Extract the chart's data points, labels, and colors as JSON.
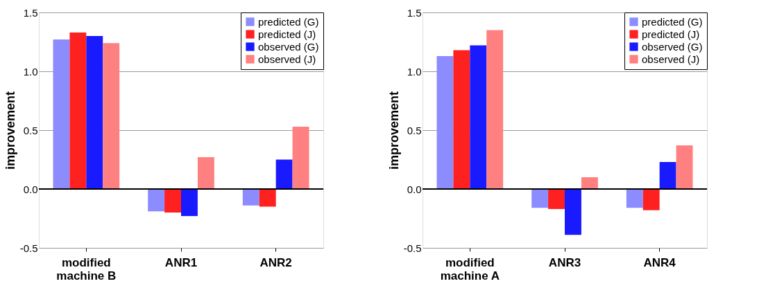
{
  "chart_data": [
    {
      "type": "bar",
      "ylabel": "improvement",
      "categories": [
        "modified\nmachine B",
        "ANR1",
        "ANR2"
      ],
      "ylim": [
        -0.5,
        1.5
      ],
      "yticks": [
        {
          "value": -0.5,
          "label": "-0.5"
        },
        {
          "value": 0,
          "label": "0.0"
        },
        {
          "value": 0.5,
          "label": "0.5"
        },
        {
          "value": 1,
          "label": "1.0"
        },
        {
          "value": 1.5,
          "label": "1.5"
        }
      ],
      "grid": "y",
      "legend": "top right",
      "ref_lines": [
        {
          "axis": "y",
          "value": 0,
          "color": "#000000"
        }
      ],
      "series": [
        {
          "name": "predicted (G)",
          "color": "#8c8cff",
          "values": [
            1.27,
            -0.19,
            -0.14
          ]
        },
        {
          "name": "predicted (J)",
          "color": "#ff2020",
          "values": [
            1.33,
            -0.2,
            -0.15
          ]
        },
        {
          "name": "observed (G)",
          "color": "#1a1aff",
          "values": [
            1.3,
            -0.23,
            0.25
          ]
        },
        {
          "name": "observed (J)",
          "color": "#ff8080",
          "values": [
            1.24,
            0.27,
            0.53
          ]
        }
      ]
    },
    {
      "type": "bar",
      "ylabel": "improvement",
      "categories": [
        "modified\nmachine A",
        "ANR3",
        "ANR4"
      ],
      "ylim": [
        -0.5,
        1.5
      ],
      "yticks": [
        {
          "value": -0.5,
          "label": "-0.5"
        },
        {
          "value": 0,
          "label": "0.0"
        },
        {
          "value": 0.5,
          "label": "0.5"
        },
        {
          "value": 1,
          "label": "1.0"
        },
        {
          "value": 1.5,
          "label": "1.5"
        }
      ],
      "grid": "y",
      "legend": "top right",
      "ref_lines": [
        {
          "axis": "y",
          "value": 0,
          "color": "#000000"
        }
      ],
      "series": [
        {
          "name": "predicted (G)",
          "color": "#8c8cff",
          "values": [
            1.13,
            -0.16,
            -0.16
          ]
        },
        {
          "name": "predicted (J)",
          "color": "#ff2020",
          "values": [
            1.18,
            -0.17,
            -0.18
          ]
        },
        {
          "name": "observed (G)",
          "color": "#1a1aff",
          "values": [
            1.22,
            -0.39,
            0.23
          ]
        },
        {
          "name": "observed (J)",
          "color": "#ff8080",
          "values": [
            1.35,
            0.1,
            0.37
          ]
        }
      ]
    }
  ]
}
